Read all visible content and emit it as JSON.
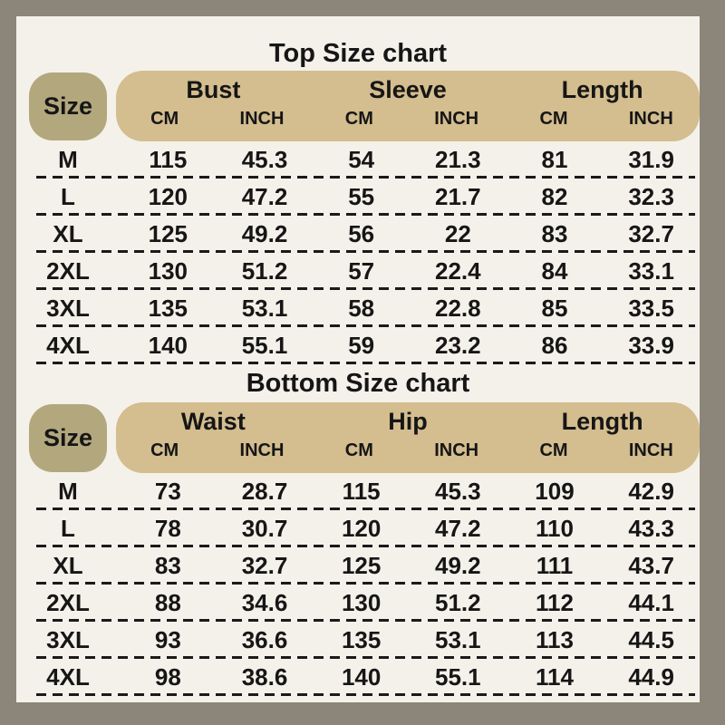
{
  "colors": {
    "frame": "#8b8679",
    "background": "#f4f1ea",
    "size_pill": "#b3a77d",
    "header_band": "#d4bd8e",
    "text": "#161616",
    "divider": "#1a1a1a"
  },
  "top_chart": {
    "title": "Top Size chart",
    "size_header": "Size",
    "groups": [
      {
        "label": "Bust"
      },
      {
        "label": "Sleeve"
      },
      {
        "label": "Length"
      }
    ],
    "unit_headers": [
      "CM",
      "INCH",
      "CM",
      "INCH",
      "CM",
      "INCH"
    ],
    "rows": [
      {
        "size": "M",
        "values": [
          "115",
          "45.3",
          "54",
          "21.3",
          "81",
          "31.9"
        ]
      },
      {
        "size": "L",
        "values": [
          "120",
          "47.2",
          "55",
          "21.7",
          "82",
          "32.3"
        ]
      },
      {
        "size": "XL",
        "values": [
          "125",
          "49.2",
          "56",
          "22",
          "83",
          "32.7"
        ]
      },
      {
        "size": "2XL",
        "values": [
          "130",
          "51.2",
          "57",
          "22.4",
          "84",
          "33.1"
        ]
      },
      {
        "size": "3XL",
        "values": [
          "135",
          "53.1",
          "58",
          "22.8",
          "85",
          "33.5"
        ]
      },
      {
        "size": "4XL",
        "values": [
          "140",
          "55.1",
          "59",
          "23.2",
          "86",
          "33.9"
        ]
      }
    ]
  },
  "bottom_chart": {
    "title": "Bottom Size chart",
    "size_header": "Size",
    "groups": [
      {
        "label": "Waist"
      },
      {
        "label": "Hip"
      },
      {
        "label": "Length"
      }
    ],
    "unit_headers": [
      "CM",
      "INCH",
      "CM",
      "INCH",
      "CM",
      "INCH"
    ],
    "rows": [
      {
        "size": "M",
        "values": [
          "73",
          "28.7",
          "115",
          "45.3",
          "109",
          "42.9"
        ]
      },
      {
        "size": "L",
        "values": [
          "78",
          "30.7",
          "120",
          "47.2",
          "110",
          "43.3"
        ]
      },
      {
        "size": "XL",
        "values": [
          "83",
          "32.7",
          "125",
          "49.2",
          "111",
          "43.7"
        ]
      },
      {
        "size": "2XL",
        "values": [
          "88",
          "34.6",
          "130",
          "51.2",
          "112",
          "44.1"
        ]
      },
      {
        "size": "3XL",
        "values": [
          "93",
          "36.6",
          "135",
          "53.1",
          "113",
          "44.5"
        ]
      },
      {
        "size": "4XL",
        "values": [
          "98",
          "38.6",
          "140",
          "55.1",
          "114",
          "44.9"
        ]
      }
    ]
  }
}
